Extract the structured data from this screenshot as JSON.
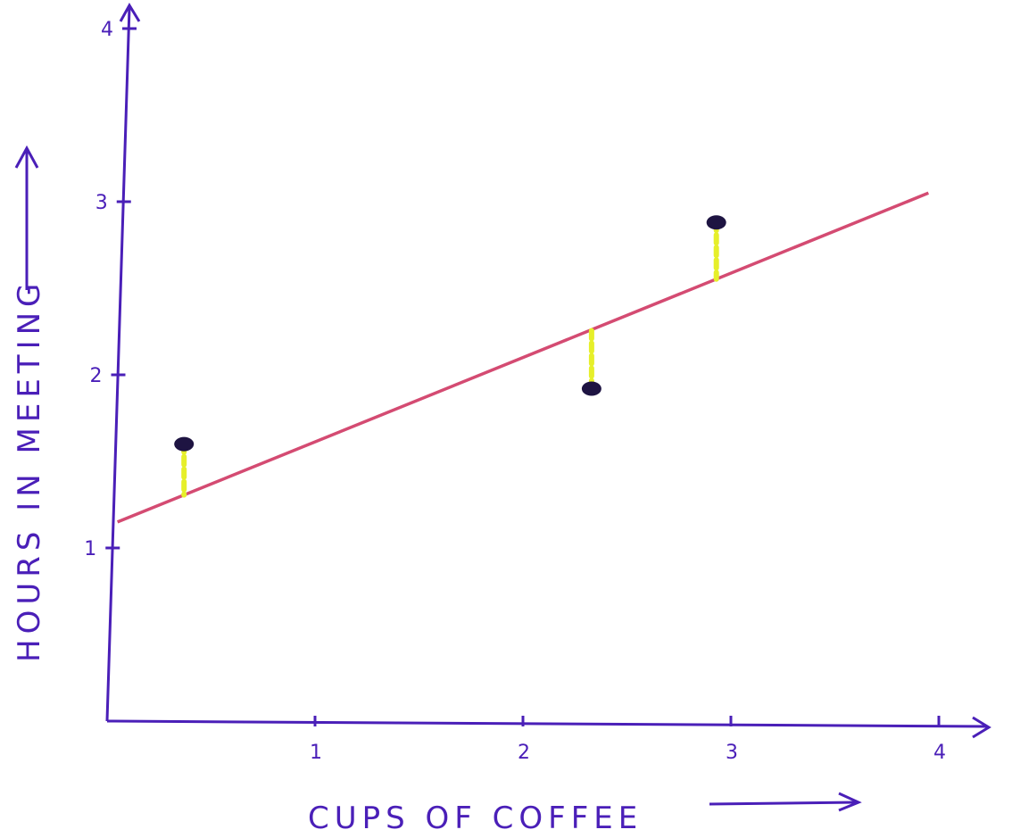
{
  "chart_data": {
    "type": "scatter",
    "title": "",
    "xlabel": "CUPS OF COFFEE",
    "ylabel": "HOURS IN MEETING",
    "xlim": [
      0,
      4
    ],
    "ylim": [
      0,
      4
    ],
    "x_ticks": [
      "1",
      "2",
      "3",
      "4"
    ],
    "y_ticks": [
      "1",
      "2",
      "3",
      "4"
    ],
    "grid": false,
    "legend": "none",
    "points": [
      {
        "x": 0.37,
        "y": 1.6
      },
      {
        "x": 2.33,
        "y": 1.92
      },
      {
        "x": 2.93,
        "y": 2.88
      }
    ],
    "fit_line": {
      "x": [
        0.05,
        3.95
      ],
      "y": [
        1.15,
        3.05
      ]
    },
    "residuals": true,
    "colors": {
      "axis": "#4a1fb8",
      "points": "#1e1442",
      "fit_line": "#d44b72",
      "residual": "#e6ef2a"
    }
  }
}
